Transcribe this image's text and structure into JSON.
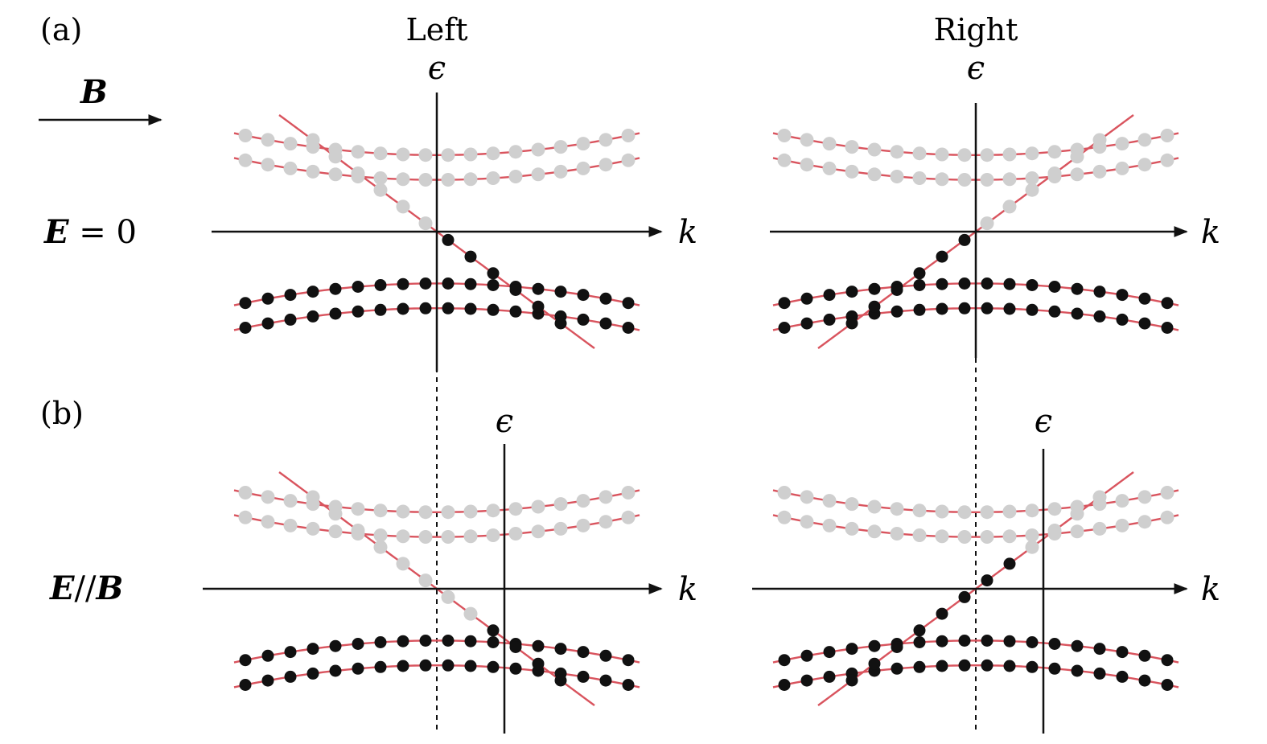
{
  "labels": {
    "panel_a": "(a)",
    "panel_b": "(b)",
    "left": "Left",
    "right": "Right",
    "b_field": "B",
    "row_a_condition": "E = 0",
    "row_b_condition": "E//B",
    "axis_epsilon": "ϵ",
    "axis_k": "k"
  },
  "colors": {
    "band": "#d9545e",
    "filled_state": "#111111",
    "empty_state": "#cfcfcf",
    "axis": "#111111"
  },
  "rows": [
    {
      "condition": "E = 0",
      "panels": [
        {
          "chirality": "Left",
          "chiral_slope": -1,
          "fermi_level": 0,
          "k_shift": 0
        },
        {
          "chirality": "Right",
          "chiral_slope": 1,
          "fermi_level": 0,
          "k_shift": 0
        }
      ]
    },
    {
      "condition": "E//B",
      "panels": [
        {
          "chirality": "Left",
          "chiral_slope": -1,
          "fermi_level": -1.5,
          "k_shift": 3
        },
        {
          "chirality": "Right",
          "chiral_slope": 1,
          "fermi_level": 1.5,
          "k_shift": 3
        }
      ]
    }
  ]
}
